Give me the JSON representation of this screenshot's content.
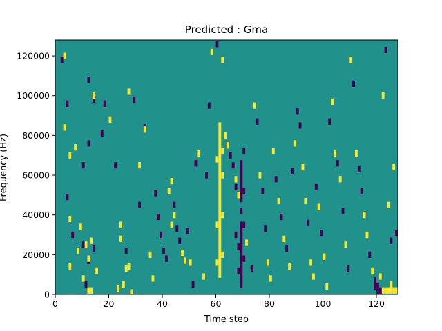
{
  "chart_data": {
    "type": "heatmap",
    "title": "Predicted : Gma",
    "xlabel": "Time step",
    "ylabel": "Frequency (Hz)",
    "xlim": [
      0,
      128
    ],
    "ylim": [
      0,
      128000
    ],
    "x_ticks": [
      "0",
      "20",
      "40",
      "60",
      "80",
      "100",
      "120"
    ],
    "y_ticks": [
      "0",
      "20000",
      "40000",
      "60000",
      "80000",
      "100000",
      "120000"
    ],
    "grid": false,
    "legend": "none",
    "colors": {
      "background": "#21918c",
      "low": "#440154",
      "high": "#fde725"
    },
    "value_levels": [
      -1,
      0,
      1
    ],
    "background_value": 0,
    "cell_height_hz": 3200,
    "cells": [
      [
        3,
        120000,
        1
      ],
      [
        2,
        118000,
        -1
      ],
      [
        14,
        98000,
        -1
      ],
      [
        14,
        100000,
        1
      ],
      [
        12,
        108000,
        -1
      ],
      [
        4,
        96000,
        -1
      ],
      [
        3,
        84000,
        1
      ],
      [
        5,
        70000,
        1
      ],
      [
        7,
        74000,
        1
      ],
      [
        12,
        76000,
        -1
      ],
      [
        10,
        65000,
        -1
      ],
      [
        4,
        49000,
        -1
      ],
      [
        5,
        38000,
        1
      ],
      [
        6,
        30000,
        -1
      ],
      [
        9,
        34000,
        1
      ],
      [
        10,
        25000,
        -1
      ],
      [
        11,
        25000,
        1
      ],
      [
        12,
        17000,
        -1
      ],
      [
        13,
        27000,
        1
      ],
      [
        14,
        23000,
        -1
      ],
      [
        12,
        18000,
        1
      ],
      [
        15,
        12000,
        1
      ],
      [
        10,
        8000,
        1
      ],
      [
        11,
        5000,
        -1
      ],
      [
        12,
        2000,
        1
      ],
      [
        13,
        2000,
        1
      ],
      [
        8,
        22000,
        1
      ],
      [
        5,
        14000,
        1
      ],
      [
        17,
        81000,
        -1
      ],
      [
        18,
        96000,
        -1
      ],
      [
        20,
        88000,
        1
      ],
      [
        22,
        65000,
        -1
      ],
      [
        24,
        35000,
        1
      ],
      [
        24,
        28000,
        1
      ],
      [
        26,
        22000,
        -1
      ],
      [
        27,
        14000,
        1
      ],
      [
        25,
        5000,
        1
      ],
      [
        28,
        1000,
        1
      ],
      [
        26,
        13000,
        1
      ],
      [
        23,
        3000,
        1
      ],
      [
        27,
        102000,
        1
      ],
      [
        29,
        98000,
        -1
      ],
      [
        31,
        65000,
        1
      ],
      [
        33,
        84000,
        -1
      ],
      [
        33,
        83000,
        1
      ],
      [
        31,
        45000,
        -1
      ],
      [
        35,
        20000,
        1
      ],
      [
        36,
        8000,
        1
      ],
      [
        37,
        51000,
        -1
      ],
      [
        38,
        39000,
        -1
      ],
      [
        39,
        30000,
        -1
      ],
      [
        40,
        22000,
        -1
      ],
      [
        41,
        18000,
        -1
      ],
      [
        42,
        52000,
        1
      ],
      [
        43,
        57000,
        1
      ],
      [
        44,
        45000,
        -1
      ],
      [
        45,
        33000,
        -1
      ],
      [
        46,
        27000,
        -1
      ],
      [
        47,
        21000,
        1
      ],
      [
        48,
        17000,
        1
      ],
      [
        49,
        32000,
        -1
      ],
      [
        50,
        16000,
        1
      ],
      [
        51,
        5000,
        -1
      ],
      [
        52,
        66000,
        -1
      ],
      [
        53,
        71000,
        1
      ],
      [
        55,
        9000,
        1
      ],
      [
        56,
        60000,
        -1
      ],
      [
        57,
        95000,
        -1
      ],
      [
        58,
        122000,
        1
      ],
      [
        60,
        126000,
        -1
      ],
      [
        62,
        118000,
        1
      ],
      [
        63,
        80000,
        1
      ],
      [
        64,
        75000,
        1
      ],
      [
        65,
        70000,
        -1
      ],
      [
        66,
        65000,
        -1
      ],
      [
        67,
        58000,
        1
      ],
      [
        68,
        50000,
        1
      ],
      [
        69,
        42000,
        -1
      ],
      [
        70,
        35000,
        -1
      ],
      [
        71,
        26000,
        1
      ],
      [
        73,
        13000,
        -1
      ],
      [
        74,
        95000,
        1
      ],
      [
        75,
        87000,
        -1
      ],
      [
        76,
        60000,
        1
      ],
      [
        77,
        52000,
        -1
      ],
      [
        78,
        33000,
        -1
      ],
      [
        79,
        16000,
        1
      ],
      [
        80,
        8000,
        1
      ],
      [
        81,
        72000,
        1
      ],
      [
        82,
        58000,
        -1
      ],
      [
        83,
        47000,
        1
      ],
      [
        84,
        39000,
        -1
      ],
      [
        85,
        28000,
        1
      ],
      [
        86,
        23000,
        -1
      ],
      [
        87,
        14000,
        1
      ],
      [
        88,
        62000,
        -1
      ],
      [
        89,
        76000,
        1
      ],
      [
        90,
        92000,
        -1
      ],
      [
        91,
        85000,
        -1
      ],
      [
        92,
        64000,
        1
      ],
      [
        93,
        47000,
        1
      ],
      [
        94,
        36000,
        -1
      ],
      [
        95,
        16000,
        1
      ],
      [
        96,
        9000,
        1
      ],
      [
        97,
        54000,
        -1
      ],
      [
        98,
        44000,
        1
      ],
      [
        99,
        31000,
        -1
      ],
      [
        100,
        19000,
        1
      ],
      [
        101,
        4000,
        1
      ],
      [
        102,
        87000,
        -1
      ],
      [
        103,
        97000,
        1
      ],
      [
        104,
        71000,
        1
      ],
      [
        105,
        66000,
        -1
      ],
      [
        106,
        58000,
        1
      ],
      [
        107,
        42000,
        -1
      ],
      [
        108,
        25000,
        1
      ],
      [
        109,
        13000,
        -1
      ],
      [
        110,
        118000,
        1
      ],
      [
        111,
        106000,
        -1
      ],
      [
        112,
        71000,
        1
      ],
      [
        113,
        63000,
        -1
      ],
      [
        114,
        52000,
        -1
      ],
      [
        115,
        40000,
        1
      ],
      [
        116,
        30000,
        1
      ],
      [
        117,
        20000,
        -1
      ],
      [
        118,
        12000,
        1
      ],
      [
        119,
        4000,
        -1
      ],
      [
        120,
        1000,
        -1
      ],
      [
        121,
        9000,
        1
      ],
      [
        122,
        100000,
        1
      ],
      [
        123,
        123000,
        -1
      ],
      [
        124,
        45000,
        1
      ],
      [
        125,
        27000,
        -1
      ],
      [
        126,
        64000,
        1
      ],
      [
        127,
        31000,
        -1
      ],
      [
        61,
        10000,
        1
      ],
      [
        61,
        13000,
        1
      ],
      [
        61,
        16000,
        1
      ],
      [
        61,
        19000,
        1
      ],
      [
        61,
        22000,
        1
      ],
      [
        61,
        25000,
        1
      ],
      [
        61,
        28000,
        1
      ],
      [
        61,
        31000,
        1
      ],
      [
        61,
        34000,
        1
      ],
      [
        61,
        37000,
        1
      ],
      [
        61,
        40000,
        1
      ],
      [
        61,
        43000,
        1
      ],
      [
        61,
        46000,
        1
      ],
      [
        61,
        49000,
        1
      ],
      [
        61,
        52000,
        1
      ],
      [
        61,
        55000,
        1
      ],
      [
        61,
        58000,
        1
      ],
      [
        61,
        61000,
        1
      ],
      [
        61,
        64000,
        1
      ],
      [
        61,
        67000,
        1
      ],
      [
        61,
        70000,
        1
      ],
      [
        61,
        73000,
        1
      ],
      [
        61,
        76000,
        1
      ],
      [
        61,
        79000,
        1
      ],
      [
        61,
        82000,
        1
      ],
      [
        61,
        85000,
        1
      ],
      [
        62,
        20000,
        1
      ],
      [
        62,
        40000,
        1
      ],
      [
        62,
        60000,
        1
      ],
      [
        62,
        72000,
        1
      ],
      [
        60,
        16000,
        1
      ],
      [
        60,
        35000,
        1
      ],
      [
        60,
        68000,
        1
      ],
      [
        69,
        5000,
        -1
      ],
      [
        69,
        8000,
        -1
      ],
      [
        69,
        11000,
        -1
      ],
      [
        69,
        14000,
        -1
      ],
      [
        69,
        17000,
        -1
      ],
      [
        69,
        20000,
        -1
      ],
      [
        69,
        23000,
        -1
      ],
      [
        69,
        26000,
        -1
      ],
      [
        69,
        29000,
        -1
      ],
      [
        69,
        32000,
        -1
      ],
      [
        69,
        35000,
        -1
      ],
      [
        69,
        48000,
        -1
      ],
      [
        69,
        51000,
        -1
      ],
      [
        69,
        54000,
        -1
      ],
      [
        69,
        57000,
        -1
      ],
      [
        69,
        60000,
        -1
      ],
      [
        69,
        63000,
        -1
      ],
      [
        69,
        66000,
        -1
      ],
      [
        68,
        12000,
        -1
      ],
      [
        68,
        24000,
        -1
      ],
      [
        70,
        52000,
        -1
      ],
      [
        70,
        72000,
        -1
      ],
      [
        70,
        18000,
        -1
      ],
      [
        67,
        30000,
        -1
      ],
      [
        67,
        54000,
        -1
      ],
      [
        125,
        2000,
        1
      ],
      [
        125,
        5000,
        1
      ],
      [
        126,
        2000,
        1
      ],
      [
        127,
        2000,
        1
      ],
      [
        122,
        2000,
        1
      ],
      [
        123,
        2000,
        1
      ],
      [
        124,
        2000,
        1
      ],
      [
        121,
        2000,
        -1
      ],
      [
        120,
        4000,
        -1
      ],
      [
        119,
        7000,
        -1
      ],
      [
        44,
        40000,
        1
      ],
      [
        43,
        35000,
        1
      ]
    ]
  }
}
